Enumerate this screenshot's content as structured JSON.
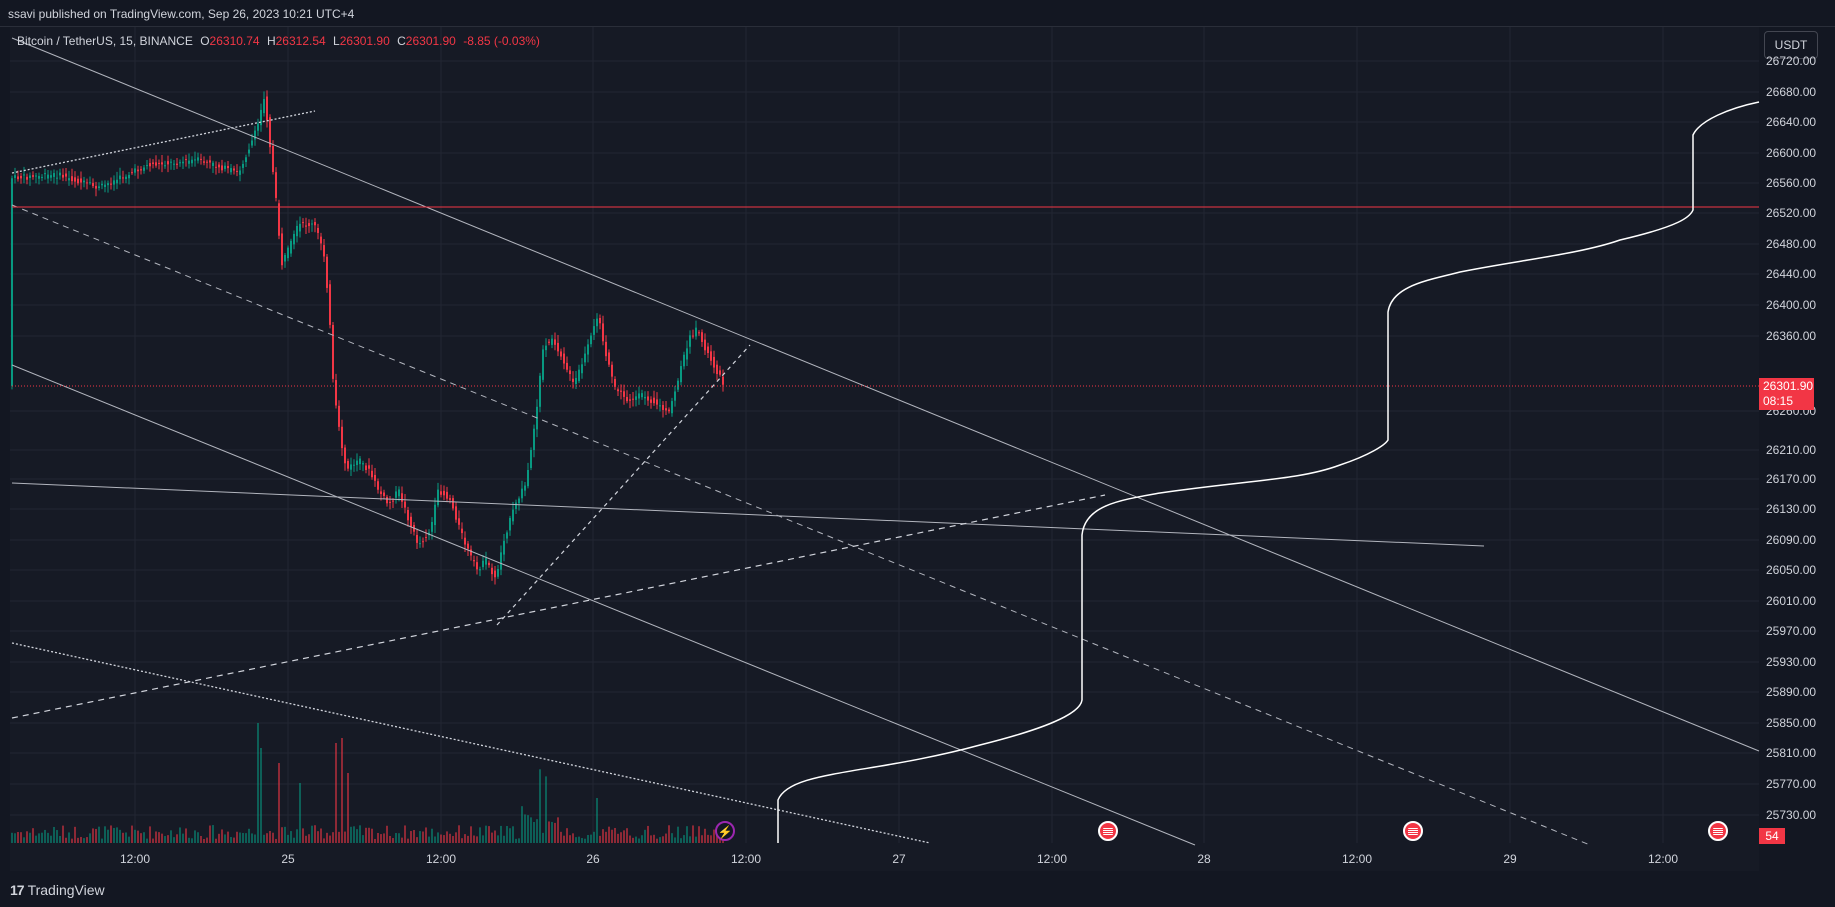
{
  "header": {
    "published": "ssavi published on TradingView.com, Sep 26, 2023 10:21 UTC+4"
  },
  "legend": {
    "symbol": "Bitcoin / TetherUS, 15, BINANCE",
    "open_label": "O",
    "open": "26310.74",
    "high_label": "H",
    "high": "26312.54",
    "low_label": "L",
    "low": "26301.90",
    "close_label": "C",
    "close": "26301.90",
    "change": "-8.85 (-0.03%)"
  },
  "currency_button": "USDT",
  "y_axis": [
    "26720.00",
    "26680.00",
    "26640.00",
    "26600.00",
    "26560.00",
    "26520.00",
    "26480.00",
    "26440.00",
    "26400.00",
    "26360.00",
    "26260.00",
    "26210.00",
    "26170.00",
    "26130.00",
    "26090.00",
    "26050.00",
    "26010.00",
    "25970.00",
    "25930.00",
    "25890.00",
    "25850.00",
    "25810.00",
    "25770.00",
    "25730.00"
  ],
  "x_axis": [
    "12:00",
    "25",
    "12:00",
    "26",
    "12:00",
    "27",
    "12:00",
    "28",
    "12:00",
    "29",
    "12:00"
  ],
  "price_tag": {
    "price": "26301.90",
    "countdown": "08:15"
  },
  "volume_tag": "54",
  "events": {
    "bolt_icon": "lightning-icon",
    "flag_icon": "us-flag-icon"
  },
  "footer": {
    "logo_mark": "17",
    "logo_text": "TradingView"
  },
  "colors": {
    "up": "#089981",
    "down": "#f23645",
    "background": "#161a25",
    "grid": "#222632"
  }
}
